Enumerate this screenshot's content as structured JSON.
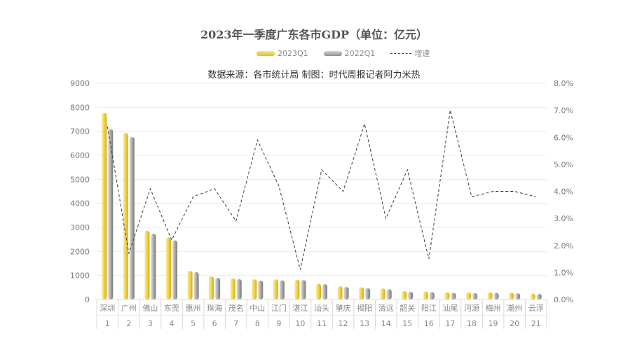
{
  "chart_data": {
    "type": "bar",
    "title": "2023年一季度广东各市GDP（单位：亿元）",
    "subtitle": "数据来源：各市统计局 制图：时代周报记者阿力米热",
    "legend": [
      "2023Q1",
      "2022Q1",
      "增速"
    ],
    "legend_position": "top",
    "categories": [
      "深圳",
      "广州",
      "佛山",
      "东莞",
      "惠州",
      "珠海",
      "茂名",
      "中山",
      "江门",
      "湛江",
      "汕头",
      "肇庆",
      "揭阳",
      "清远",
      "韶关",
      "阳江",
      "汕尾",
      "河源",
      "梅州",
      "潮州",
      "云浮"
    ],
    "ranks": [
      "1",
      "2",
      "3",
      "4",
      "5",
      "6",
      "7",
      "8",
      "9",
      "10",
      "11",
      "12",
      "13",
      "14",
      "15",
      "16",
      "17",
      "18",
      "19",
      "20",
      "21"
    ],
    "series": [
      {
        "name": "2023Q1",
        "type": "bar",
        "color": "#e8c025",
        "values": [
          7770,
          6930,
          2860,
          2580,
          1190,
          960,
          880,
          840,
          840,
          820,
          660,
          550,
          510,
          460,
          350,
          330,
          300,
          290,
          300,
          280,
          250
        ]
      },
      {
        "name": "2022Q1",
        "type": "bar",
        "color": "#9a9a9a",
        "values": [
          7090,
          6760,
          2740,
          2460,
          1140,
          900,
          850,
          790,
          800,
          810,
          640,
          520,
          470,
          430,
          320,
          310,
          280,
          270,
          280,
          260,
          240
        ]
      },
      {
        "name": "增速",
        "type": "line",
        "axis": "right",
        "unit": "%",
        "values": [
          6.4,
          1.7,
          4.1,
          2.2,
          3.8,
          4.1,
          2.9,
          5.9,
          4.2,
          1.1,
          4.8,
          4.0,
          6.5,
          3.0,
          4.8,
          1.5,
          7.0,
          3.8,
          4.0,
          4.0,
          3.8
        ]
      }
    ],
    "ylim_left": [
      0,
      9000
    ],
    "yticks_left": [
      "0",
      "1000",
      "2000",
      "3000",
      "4000",
      "5000",
      "6000",
      "7000",
      "8000",
      "9000"
    ],
    "ylim_right": [
      0,
      8
    ],
    "yticks_right": [
      "0.0%",
      "1.0%",
      "2.0%",
      "3.0%",
      "4.0%",
      "5.0%",
      "6.0%",
      "7.0%",
      "8.0%"
    ],
    "grid": true
  }
}
